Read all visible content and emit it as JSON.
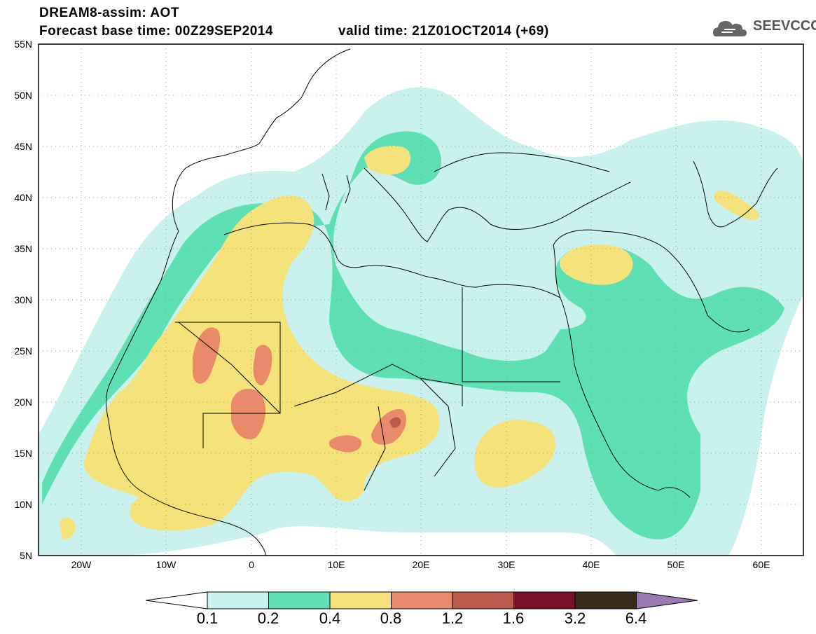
{
  "header": {
    "title": "DREAM8-assim: AOT",
    "base_time": "Forecast base time: 00Z29SEP2014",
    "valid_time": "valid time: 21Z01OCT2014 (+69)"
  },
  "logo": {
    "text": "SEEVCCC",
    "icon": "cloud-icon"
  },
  "map": {
    "lat_labels": [
      "55N",
      "50N",
      "45N",
      "40N",
      "35N",
      "30N",
      "25N",
      "20N",
      "15N",
      "10N",
      "5N"
    ],
    "lon_labels": [
      "20W",
      "10W",
      "0",
      "10E",
      "20E",
      "30E",
      "40E",
      "50E",
      "60E"
    ],
    "colors": {
      "c01": "#c9f2ee",
      "c02": "#5fe0b4",
      "c04": "#f5e27a",
      "c08": "#e98b6a",
      "c12": "#b95a4a",
      "c16": "#7a0f2a",
      "c32": "#3a2a1a",
      "c64": "#9a7ab5"
    }
  },
  "colorbar": {
    "labels": [
      "0.1",
      "0.2",
      "0.4",
      "0.8",
      "1.2",
      "1.6",
      "3.2",
      "6.4"
    ],
    "colors": [
      "#ffffff",
      "#c9f2ee",
      "#5fe0b4",
      "#f5e27a",
      "#e98b6a",
      "#b95a4a",
      "#7a0f2a",
      "#3a2a1a",
      "#9a7ab5"
    ]
  }
}
